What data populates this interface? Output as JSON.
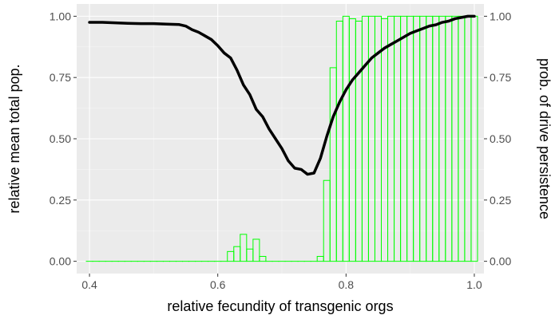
{
  "chart_data": {
    "type": "bar+line",
    "title": "",
    "xlabel": "relative fecundity of transgenic orgs",
    "ylabel": "relative mean total pop.",
    "y2label": "prob. of drive persistence",
    "xlim": [
      0.38,
      1.015
    ],
    "ylim": [
      -0.05,
      1.05
    ],
    "x_ticks": [
      "0.4",
      "0.6",
      "0.8",
      "1.0"
    ],
    "x_tick_values": [
      0.4,
      0.6,
      0.8,
      1.0
    ],
    "y_ticks": [
      "0.00",
      "0.25",
      "0.50",
      "0.75",
      "1.00"
    ],
    "y_tick_values": [
      0.0,
      0.25,
      0.5,
      0.75,
      1.0
    ],
    "y2_ticks": [
      "0.00",
      "0.25",
      "0.50",
      "0.75",
      "1.00"
    ],
    "grid": true,
    "legend": "none",
    "colors": {
      "panel_bg": "#ebebeb",
      "grid_major": "#ffffff",
      "grid_minor": "#f5f5f5",
      "bar_outline": "#00ff00",
      "line": "#000000",
      "tick_text": "#4d4d4d",
      "tick_mark": "#333333",
      "axis_title": "#000000"
    },
    "bars": {
      "name": "",
      "bin_width": 0.01,
      "x": [
        0.4,
        0.41,
        0.42,
        0.43,
        0.44,
        0.45,
        0.46,
        0.47,
        0.48,
        0.49,
        0.5,
        0.51,
        0.52,
        0.53,
        0.54,
        0.55,
        0.56,
        0.57,
        0.58,
        0.59,
        0.6,
        0.61,
        0.62,
        0.63,
        0.64,
        0.65,
        0.66,
        0.67,
        0.68,
        0.69,
        0.7,
        0.71,
        0.72,
        0.73,
        0.74,
        0.75,
        0.76,
        0.77,
        0.78,
        0.79,
        0.8,
        0.81,
        0.82,
        0.83,
        0.84,
        0.85,
        0.86,
        0.87,
        0.88,
        0.89,
        0.9,
        0.91,
        0.92,
        0.93,
        0.94,
        0.95,
        0.96,
        0.97,
        0.98,
        0.99,
        1.0
      ],
      "values": [
        0,
        0,
        0,
        0,
        0,
        0,
        0,
        0,
        0,
        0,
        0,
        0,
        0,
        0,
        0,
        0,
        0,
        0,
        0,
        0,
        0,
        0,
        0.04,
        0.06,
        0.11,
        0.05,
        0.09,
        0.02,
        0,
        0,
        0,
        0,
        0,
        0,
        0,
        0,
        0.02,
        0.33,
        0.79,
        0.98,
        1.0,
        0.99,
        0.98,
        1.0,
        1.0,
        1.0,
        0.99,
        1.0,
        1.0,
        1.0,
        1.0,
        1.0,
        1.0,
        1.0,
        1.0,
        1.0,
        1.0,
        1.0,
        1.0,
        1.0,
        1.0
      ]
    },
    "series": [
      {
        "name": "",
        "x": [
          0.4,
          0.42,
          0.44,
          0.46,
          0.48,
          0.5,
          0.52,
          0.54,
          0.55,
          0.56,
          0.57,
          0.58,
          0.59,
          0.6,
          0.61,
          0.62,
          0.63,
          0.64,
          0.65,
          0.66,
          0.67,
          0.68,
          0.69,
          0.7,
          0.71,
          0.72,
          0.73,
          0.74,
          0.75,
          0.76,
          0.77,
          0.78,
          0.79,
          0.8,
          0.81,
          0.82,
          0.83,
          0.84,
          0.85,
          0.86,
          0.87,
          0.88,
          0.89,
          0.9,
          0.91,
          0.92,
          0.93,
          0.94,
          0.95,
          0.96,
          0.97,
          0.98,
          0.99,
          1.0
        ],
        "values": [
          0.975,
          0.975,
          0.973,
          0.971,
          0.97,
          0.97,
          0.968,
          0.966,
          0.96,
          0.945,
          0.935,
          0.92,
          0.905,
          0.88,
          0.85,
          0.83,
          0.78,
          0.72,
          0.68,
          0.62,
          0.59,
          0.54,
          0.5,
          0.46,
          0.41,
          0.38,
          0.375,
          0.355,
          0.36,
          0.42,
          0.51,
          0.59,
          0.65,
          0.7,
          0.74,
          0.77,
          0.8,
          0.83,
          0.85,
          0.87,
          0.885,
          0.9,
          0.915,
          0.93,
          0.94,
          0.95,
          0.96,
          0.965,
          0.975,
          0.98,
          0.99,
          0.995,
          1.0,
          1.0
        ]
      }
    ]
  }
}
